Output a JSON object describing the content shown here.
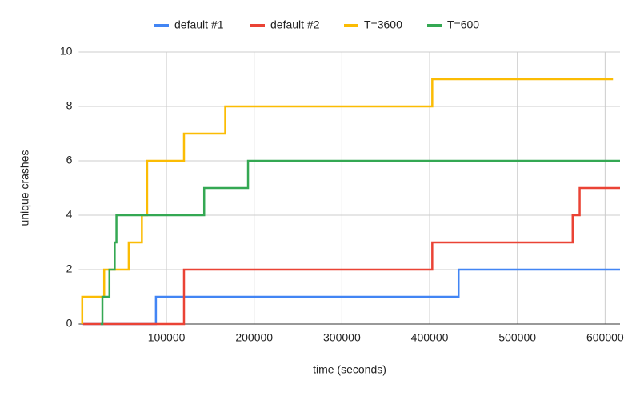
{
  "chart_data": {
    "type": "line",
    "step": true,
    "x_label": "time (seconds)",
    "y_label": "unique crashes",
    "xlim": [
      0,
      617000
    ],
    "xticks": [
      100000,
      200000,
      300000,
      400000,
      500000,
      600000
    ],
    "ylim": [
      0,
      10
    ],
    "yticks": [
      0,
      2,
      4,
      6,
      8,
      10
    ],
    "grid": true,
    "legend": "top",
    "series": [
      {
        "name": "default #1",
        "color": "#4285f4",
        "x": [
          5000,
          88000,
          88000,
          433000,
          433000,
          617000
        ],
        "values": [
          0,
          0,
          1,
          1,
          2,
          2
        ]
      },
      {
        "name": "default #2",
        "color": "#ea4335",
        "x": [
          5000,
          120000,
          120000,
          403000,
          403000,
          563000,
          563000,
          571000,
          571000,
          617000
        ],
        "values": [
          0,
          0,
          2,
          2,
          3,
          3,
          4,
          4,
          5,
          5
        ]
      },
      {
        "name": "T=3600",
        "color": "#fbbc04",
        "x": [
          4000,
          4000,
          29000,
          29000,
          57000,
          57000,
          72000,
          72000,
          78000,
          78000,
          120000,
          120000,
          167000,
          167000,
          403000,
          403000,
          609000
        ],
        "values": [
          0,
          1,
          1,
          2,
          2,
          3,
          3,
          4,
          4,
          6,
          6,
          7,
          7,
          8,
          8,
          9,
          9
        ]
      },
      {
        "name": "T=600",
        "color": "#34a853",
        "x": [
          25000,
          27000,
          27000,
          35000,
          35000,
          41000,
          41000,
          43000,
          43000,
          143000,
          143000,
          193000,
          193000,
          617000
        ],
        "values": [
          0,
          0,
          1,
          1,
          2,
          2,
          3,
          3,
          4,
          4,
          5,
          5,
          6,
          6
        ]
      }
    ]
  }
}
